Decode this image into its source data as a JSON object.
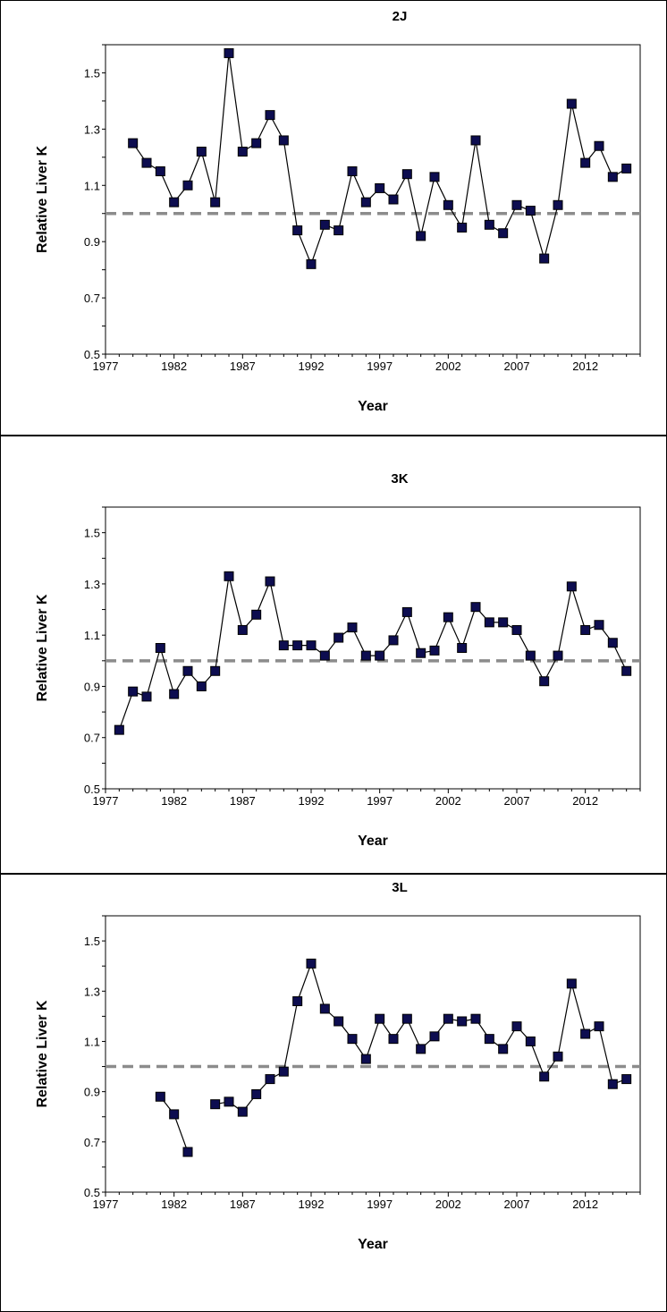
{
  "chart_data": [
    {
      "type": "line",
      "title": "2J",
      "xlabel": "Year",
      "ylabel": "Relative Liver K",
      "xlim": [
        1977,
        2016
      ],
      "ylim": [
        0.5,
        1.6
      ],
      "xticks": [
        "1977",
        "1982",
        "1987",
        "1992",
        "1997",
        "2002",
        "2007",
        "2012"
      ],
      "yticks": [
        "0.5",
        "0.7",
        "0.9",
        "1.1",
        "1.3",
        "1.5"
      ],
      "reference_line": 1.0,
      "grid": false,
      "legend": "none",
      "colors": {
        "marker": "#0d0d50",
        "line": "#000000",
        "reference": "#8c8c8c"
      },
      "x": [
        1979,
        1980,
        1981,
        1982,
        1983,
        1984,
        1985,
        1986,
        1987,
        1988,
        1989,
        1990,
        1991,
        1992,
        1993,
        1994,
        1995,
        1996,
        1997,
        1998,
        1999,
        2000,
        2001,
        2002,
        2003,
        2004,
        2005,
        2006,
        2007,
        2008,
        2009,
        2010,
        2011,
        2012,
        2013,
        2014,
        2015
      ],
      "y": [
        1.25,
        1.18,
        1.15,
        1.04,
        1.1,
        1.22,
        1.04,
        1.57,
        1.22,
        1.25,
        1.35,
        1.26,
        0.94,
        0.82,
        0.96,
        0.94,
        1.15,
        1.04,
        1.09,
        1.05,
        1.14,
        0.92,
        1.13,
        1.03,
        0.95,
        1.26,
        0.96,
        0.93,
        1.03,
        1.01,
        0.84,
        1.03,
        1.39,
        1.18,
        1.24,
        1.13,
        1.16
      ]
    },
    {
      "type": "line",
      "title": "3K",
      "xlabel": "Year",
      "ylabel": "Relative Liver K",
      "xlim": [
        1977,
        2016
      ],
      "ylim": [
        0.5,
        1.6
      ],
      "xticks": [
        "1977",
        "1982",
        "1987",
        "1992",
        "1997",
        "2002",
        "2007",
        "2012"
      ],
      "yticks": [
        "0.5",
        "0.7",
        "0.9",
        "1.1",
        "1.3",
        "1.5"
      ],
      "reference_line": 1.0,
      "grid": false,
      "legend": "none",
      "colors": {
        "marker": "#0d0d50",
        "line": "#000000",
        "reference": "#8c8c8c"
      },
      "x": [
        1978,
        1979,
        1980,
        1981,
        1982,
        1983,
        1984,
        1985,
        1986,
        1987,
        1988,
        1989,
        1990,
        1991,
        1992,
        1993,
        1994,
        1995,
        1996,
        1997,
        1998,
        1999,
        2000,
        2001,
        2002,
        2003,
        2004,
        2005,
        2006,
        2007,
        2008,
        2009,
        2010,
        2011,
        2012,
        2013,
        2014,
        2015
      ],
      "y": [
        0.73,
        0.88,
        0.86,
        1.05,
        0.87,
        0.96,
        0.9,
        0.96,
        1.33,
        1.12,
        1.18,
        1.31,
        1.06,
        1.06,
        1.06,
        1.02,
        1.09,
        1.13,
        1.02,
        1.02,
        1.08,
        1.19,
        1.03,
        1.04,
        1.17,
        1.05,
        1.21,
        1.15,
        1.15,
        1.12,
        1.02,
        0.92,
        1.02,
        1.29,
        1.12,
        1.14,
        1.07,
        0.96
      ]
    },
    {
      "type": "line",
      "title": "3L",
      "xlabel": "Year",
      "ylabel": "Relative Liver K",
      "xlim": [
        1977,
        2016
      ],
      "ylim": [
        0.5,
        1.6
      ],
      "xticks": [
        "1977",
        "1982",
        "1987",
        "1992",
        "1997",
        "2002",
        "2007",
        "2012"
      ],
      "yticks": [
        "0.5",
        "0.7",
        "0.9",
        "1.1",
        "1.3",
        "1.5"
      ],
      "reference_line": 1.0,
      "grid": false,
      "legend": "none",
      "colors": {
        "marker": "#0d0d50",
        "line": "#000000",
        "reference": "#8c8c8c"
      },
      "x": [
        1981,
        1982,
        1983,
        1984,
        1985,
        1986,
        1987,
        1988,
        1989,
        1990,
        1991,
        1992,
        1993,
        1994,
        1995,
        1996,
        1997,
        1998,
        1999,
        2000,
        2001,
        2002,
        2003,
        2004,
        2005,
        2006,
        2007,
        2008,
        2009,
        2010,
        2011,
        2012,
        2013,
        2014,
        2015
      ],
      "y": [
        0.88,
        0.81,
        0.66,
        null,
        0.85,
        0.86,
        0.82,
        0.89,
        0.95,
        0.98,
        1.26,
        1.41,
        1.23,
        1.18,
        1.11,
        1.03,
        1.19,
        1.11,
        1.19,
        1.07,
        1.12,
        1.19,
        1.18,
        1.19,
        1.11,
        1.07,
        1.16,
        1.1,
        0.96,
        1.04,
        1.33,
        1.13,
        1.16,
        0.93,
        0.95
      ]
    }
  ]
}
